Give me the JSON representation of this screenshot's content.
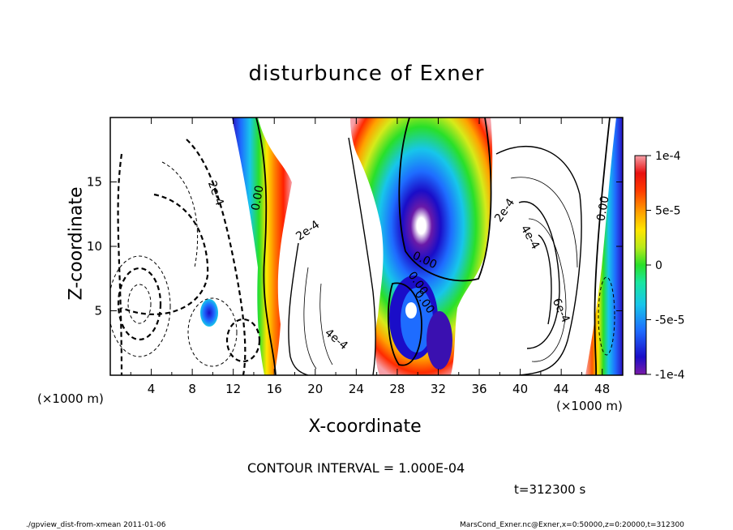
{
  "chart_data": {
    "type": "contour",
    "title": "disturbunce of Exner",
    "xlabel": "X-coordinate",
    "ylabel": "Z-coordinate",
    "x_units_label": "(×1000 m)",
    "x_ticks": [
      4,
      8,
      12,
      16,
      20,
      24,
      28,
      32,
      36,
      40,
      44,
      48
    ],
    "y_ticks": [
      5,
      10,
      15
    ],
    "xlim": [
      0,
      50
    ],
    "ylim": [
      0,
      20
    ],
    "colorbar": {
      "range": [
        -0.0001,
        0.0001
      ],
      "tick_labels": [
        "1e-4",
        "5e-5",
        "0",
        "-5e-5",
        "-1e-4"
      ],
      "tick_values": [
        0.0001,
        5e-05,
        0,
        -5e-05,
        -0.0001
      ]
    },
    "contour_labels": [
      "2e-4",
      "0.00",
      "2e-4",
      "0.00",
      "0.00",
      "0.00",
      "2e-4",
      "4e-4",
      "4e-4",
      "6e-4",
      "0.00"
    ],
    "contour_interval_text": "CONTOUR INTERVAL = 1.000E-04",
    "time_text": "t=312300 s"
  },
  "footer": {
    "left": "./gpview_dist-from-xmean  2011-01-06",
    "right": "MarsCond_Exner.nc@Exner,x=0:50000,z=0:20000,t=312300"
  }
}
